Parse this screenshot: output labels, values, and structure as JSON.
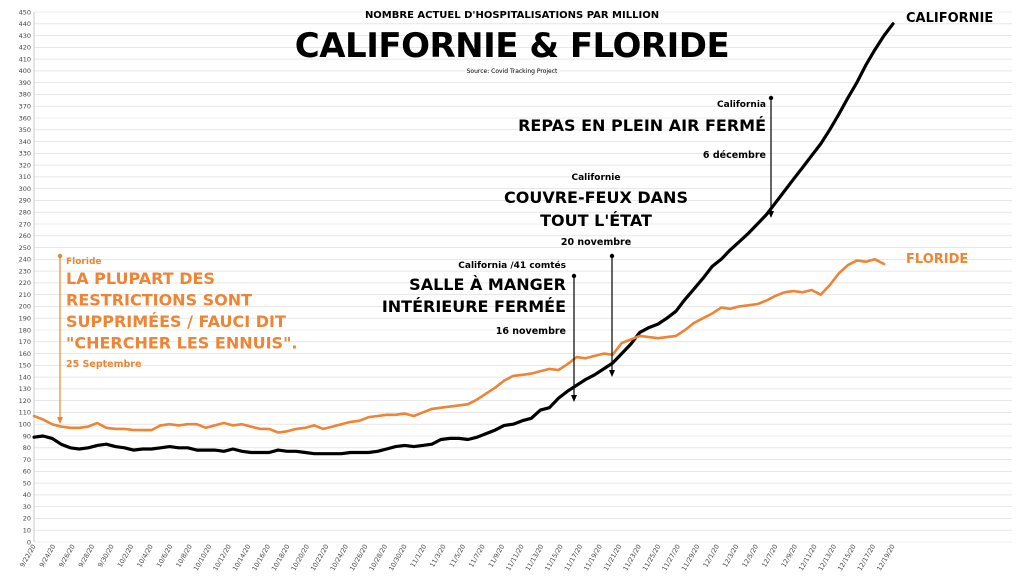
{
  "chart_data": {
    "type": "line",
    "title": "CALIFORNIE & FLORIDE",
    "subtitle": "NOMBRE ACTUEL D'HOSPITALISATIONS PAR MILLION",
    "source": "Source: Covid Tracking Project",
    "ylim": [
      0,
      450
    ],
    "yticks": [
      0,
      10,
      20,
      30,
      40,
      50,
      60,
      70,
      80,
      90,
      100,
      110,
      120,
      130,
      140,
      150,
      160,
      170,
      180,
      190,
      200,
      210,
      220,
      230,
      240,
      250,
      260,
      270,
      280,
      290,
      300,
      310,
      320,
      330,
      340,
      350,
      360,
      370,
      380,
      390,
      400,
      410,
      420,
      430,
      440,
      450
    ],
    "xtick_labels": [
      "9/22/20",
      "9/24/20",
      "9/26/20",
      "9/28/20",
      "9/30/20",
      "10/2/20",
      "10/4/20",
      "10/6/20",
      "10/8/20",
      "10/10/20",
      "10/12/20",
      "10/14/20",
      "10/16/20",
      "10/18/20",
      "10/20/20",
      "10/22/20",
      "10/24/20",
      "10/26/20",
      "10/28/20",
      "10/30/20",
      "11/1/20",
      "11/3/20",
      "11/5/20",
      "11/7/20",
      "11/9/20",
      "11/11/20",
      "11/13/20",
      "11/15/20",
      "11/17/20",
      "11/19/20",
      "11/21/20",
      "11/23/20",
      "11/25/20",
      "11/27/20",
      "11/29/20",
      "12/1/20",
      "12/3/20",
      "12/5/20",
      "12/7/20",
      "12/9/20",
      "12/11/20",
      "12/13/20",
      "12/15/20",
      "12/17/20",
      "12/19/20"
    ],
    "series": [
      {
        "name": "CALIFORNIE",
        "color": "#000000",
        "values": [
          89,
          90,
          88,
          83,
          80,
          79,
          80,
          82,
          83,
          81,
          80,
          78,
          79,
          79,
          80,
          81,
          80,
          80,
          78,
          78,
          78,
          77,
          79,
          77,
          76,
          76,
          76,
          78,
          77,
          77,
          76,
          75,
          75,
          75,
          75,
          76,
          76,
          76,
          77,
          79,
          81,
          82,
          81,
          82,
          83,
          87,
          88,
          88,
          87,
          89,
          92,
          95,
          99,
          100,
          103,
          105,
          112,
          114,
          122,
          128,
          133,
          138,
          142,
          147,
          152,
          160,
          168,
          178,
          182,
          185,
          190,
          196,
          206,
          215,
          224,
          234,
          240,
          248,
          255,
          262,
          270,
          278,
          288,
          298,
          308,
          318,
          328,
          338,
          350,
          363,
          377,
          390,
          405,
          418,
          430,
          440
        ]
      },
      {
        "name": "FLORIDE",
        "color": "#ee8434",
        "values": [
          107,
          104,
          100,
          98,
          97,
          97,
          98,
          101,
          97,
          96,
          96,
          95,
          95,
          95,
          99,
          100,
          99,
          100,
          100,
          97,
          99,
          101,
          99,
          100,
          98,
          96,
          96,
          93,
          94,
          96,
          97,
          99,
          96,
          98,
          100,
          102,
          103,
          106,
          107,
          108,
          108,
          109,
          107,
          110,
          113,
          114,
          115,
          116,
          117,
          121,
          126,
          131,
          137,
          141,
          142,
          143,
          145,
          147,
          146,
          151,
          157,
          156,
          158,
          160,
          159,
          169,
          172,
          175,
          174,
          173,
          174,
          175,
          180,
          186,
          190,
          194,
          199,
          198,
          200,
          201,
          202,
          205,
          209,
          212,
          213,
          212,
          214,
          210,
          218,
          228,
          235,
          239,
          238,
          240,
          236
        ]
      }
    ],
    "annotations": [
      {
        "head": "Floride",
        "lines": [
          "LA PLUPART DES",
          "RESTRICTIONS SONT",
          "SUPPRIMÉES / FAUCI DIT",
          "\"CHERCHER LES ENNUIS\"."
        ],
        "date": "25 Septembre",
        "color": "#ee8434"
      },
      {
        "head": "California /41 comtés",
        "lines": [
          "SALLE À MANGER",
          "INTÉRIEURE FERMÉE"
        ],
        "date": "16 novembre",
        "color": "#000000"
      },
      {
        "head": "Californie",
        "lines": [
          "COUVRE-FEUX DANS",
          "TOUT L'ÉTAT"
        ],
        "date": "20 novembre",
        "color": "#000000"
      },
      {
        "head": "California",
        "lines": [
          "REPAS EN PLEIN AIR FERMÉ"
        ],
        "date": "6 décembre",
        "color": "#000000"
      }
    ]
  }
}
